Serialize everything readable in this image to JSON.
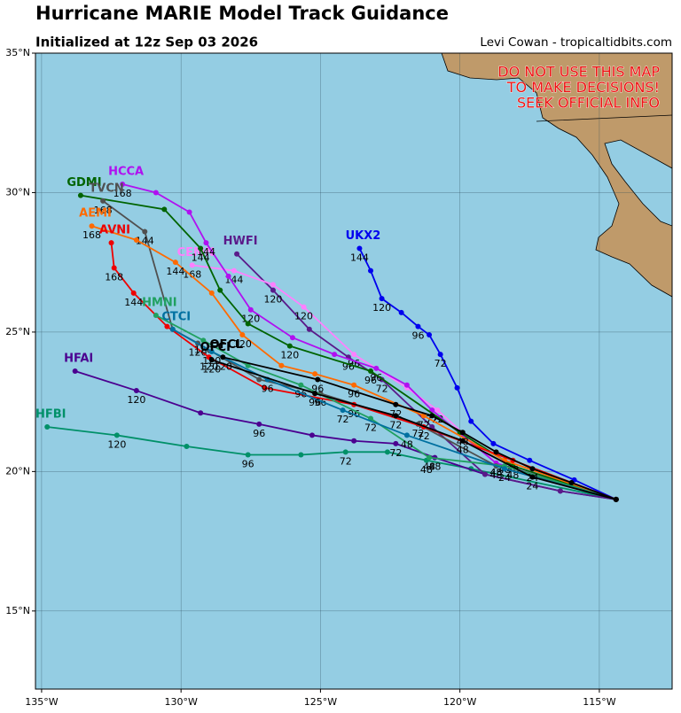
{
  "header": {
    "title": "Hurricane MARIE Model Track Guidance",
    "subtitle": "Initialized at 12z Sep 03 2026",
    "credit": "Levi Cowan - tropicaltidbits.com"
  },
  "warning": [
    "DO NOT USE THIS MAP",
    "TO MAKE DECISIONS!",
    "SEEK OFFICIAL INFO"
  ],
  "map": {
    "lonlim": [
      -135.22,
      -112.39
    ],
    "latlim": [
      12.2,
      35
    ],
    "lonticks": [
      {
        "value": -135,
        "label": "135°W"
      },
      {
        "value": -130,
        "label": "130°W"
      },
      {
        "value": -125,
        "label": "125°W"
      },
      {
        "value": -120,
        "label": "120°W"
      },
      {
        "value": -115,
        "label": "115°W"
      }
    ],
    "latticks": [
      {
        "value": 15,
        "label": "15°N"
      },
      {
        "value": 20,
        "label": "20°N"
      },
      {
        "value": 25,
        "label": "25°N"
      },
      {
        "value": 30,
        "label": "30°N"
      },
      {
        "value": 35,
        "label": "35°N"
      }
    ],
    "tracks": [
      {
        "name": "HFBI",
        "color": "#009068",
        "lon": [
          -114.4,
          -119.6,
          -121.2,
          -122.6,
          -124.1,
          -125.7,
          -127.6,
          -129.8,
          -132.3,
          -134.8
        ],
        "lat": [
          19.0,
          20.1,
          20.4,
          20.7,
          20.7,
          20.6,
          20.6,
          20.9,
          21.3,
          21.6
        ],
        "hours": [
          null,
          null,
          48,
          null,
          72,
          null,
          96,
          null,
          120,
          null
        ]
      },
      {
        "name": "HFAI",
        "color": "#4b0090",
        "lon": [
          -114.4,
          -116.4,
          -119.1,
          -120.9,
          -122.3,
          -123.8,
          -125.3,
          -127.2,
          -129.3,
          -131.6,
          -133.8
        ],
        "lat": [
          19.0,
          19.3,
          19.9,
          20.5,
          21.0,
          21.1,
          21.3,
          21.7,
          22.1,
          22.9,
          23.6
        ],
        "hours": [
          null,
          null,
          null,
          48,
          72,
          null,
          null,
          96,
          null,
          120,
          null
        ]
      },
      {
        "name": "UKX2",
        "color": "#0000ee",
        "lon": [
          -114.4,
          -115.9,
          -117.5,
          -118.8,
          -119.6,
          -120.1,
          -120.7,
          -121.1,
          -121.5,
          -122.1,
          -122.8,
          -123.2,
          -123.6
        ],
        "lat": [
          19.0,
          19.7,
          20.4,
          21.0,
          21.8,
          23.0,
          24.2,
          24.9,
          25.2,
          25.7,
          26.2,
          27.2,
          28.0
        ],
        "hours": [
          null,
          null,
          null,
          null,
          null,
          null,
          72,
          null,
          96,
          null,
          120,
          null,
          144
        ]
      },
      {
        "name": "HWFI",
        "color": "#5a1a8a",
        "lon": [
          -114.4,
          -116.4,
          -119.1,
          -121.0,
          -122.8,
          -124.0,
          -125.4,
          -126.7,
          -128.0
        ],
        "lat": [
          19.0,
          19.3,
          19.9,
          21.6,
          23.3,
          24.1,
          25.1,
          26.5,
          27.8
        ],
        "hours": [
          null,
          null,
          null,
          null,
          72,
          96,
          null,
          120,
          null
        ]
      },
      {
        "name": "CEMN",
        "color": "#ff80ff",
        "lon": [
          -114.4,
          -118.7,
          -120.8,
          -121.9,
          -123.8,
          -125.6,
          -126.7,
          -128.1,
          -129.6
        ],
        "lat": [
          19.0,
          20.3,
          22.2,
          23.0,
          24.2,
          25.9,
          26.7,
          27.2,
          27.4
        ],
        "hours": [
          null,
          48,
          72,
          null,
          96,
          120,
          null,
          144,
          168
        ]
      },
      {
        "name": "HCCA",
        "color": "#b010f0",
        "lon": [
          -114.4,
          -118.7,
          -121.0,
          -121.9,
          -123.0,
          -124.5,
          -126.0,
          -127.5,
          -128.3,
          -129.1,
          -129.7,
          -130.9,
          -132.1
        ],
        "lat": [
          19.0,
          20.3,
          22.2,
          23.1,
          23.7,
          24.2,
          24.8,
          25.8,
          27.0,
          28.2,
          29.3,
          30.0,
          30.3
        ],
        "hours": [
          null,
          48,
          72,
          null,
          96,
          null,
          null,
          120,
          null,
          144,
          null,
          null,
          168
        ]
      },
      {
        "name": "GDMI",
        "color": "#006400",
        "lon": [
          -114.4,
          -118.1,
          -120.0,
          -123.2,
          -126.1,
          -127.6,
          -128.6,
          -129.3,
          -130.6,
          -133.6
        ],
        "lat": [
          19.0,
          20.2,
          21.4,
          23.6,
          24.5,
          25.3,
          26.5,
          28.0,
          29.4,
          29.9
        ],
        "hours": [
          null,
          48,
          null,
          96,
          120,
          null,
          null,
          144,
          null,
          null
        ]
      },
      {
        "name": "TVCN",
        "color": "#505050",
        "lon": [
          -114.4,
          -118.7,
          -121.5,
          -125.0,
          -127.2,
          -129.4,
          -130.3,
          -131.3,
          -132.8
        ],
        "lat": [
          19.0,
          20.2,
          21.7,
          22.8,
          23.3,
          24.6,
          25.1,
          28.6,
          29.7
        ],
        "hours": [
          null,
          48,
          72,
          96,
          null,
          120,
          null,
          144,
          168
        ]
      },
      {
        "name": "AEMI",
        "color": "#ff6a00",
        "lon": [
          -114.4,
          -118.4,
          -121.3,
          -123.8,
          -125.2,
          -126.4,
          -127.8,
          -128.9,
          -130.2,
          -131.6,
          -133.2
        ],
        "lat": [
          19.0,
          20.4,
          22.0,
          23.1,
          23.5,
          23.8,
          24.9,
          26.4,
          27.5,
          28.3,
          28.8
        ],
        "hours": [
          null,
          48,
          72,
          96,
          null,
          null,
          120,
          null,
          144,
          null,
          168
        ]
      },
      {
        "name": "AVNI",
        "color": "#ee0000",
        "lon": [
          -114.4,
          -118.1,
          -121.3,
          -123.8,
          -127.0,
          -129.0,
          -130.5,
          -131.7,
          -132.4,
          -132.5
        ],
        "lat": [
          19.0,
          20.4,
          21.6,
          22.4,
          23.0,
          24.1,
          25.2,
          26.4,
          27.3,
          28.2
        ],
        "hours": [
          null,
          48,
          72,
          96,
          null,
          120,
          null,
          144,
          168,
          null
        ]
      },
      {
        "name": "HMNI",
        "color": "#20a060",
        "lon": [
          -114.4,
          -118.4,
          -121.1,
          -123.2,
          -125.7,
          -127.6,
          -129.2,
          -130.9
        ],
        "lat": [
          19.0,
          20.2,
          20.5,
          21.9,
          23.1,
          23.8,
          24.7,
          25.6
        ],
        "hours": [
          null,
          null,
          48,
          72,
          96,
          null,
          120,
          null
        ]
      },
      {
        "name": "CTCI",
        "color": "#0070a0",
        "lon": [
          -114.4,
          -118.4,
          -121.9,
          -124.2,
          -126.9,
          -128.9,
          -130.3
        ],
        "lat": [
          19.0,
          20.1,
          21.3,
          22.2,
          23.3,
          24.3,
          25.1
        ],
        "hours": [
          null,
          24,
          48,
          72,
          96,
          120,
          null
        ]
      },
      {
        "name": "OFCI",
        "color": "#000000",
        "lon": [
          -114.4,
          -117.4,
          -119.9,
          -122.3,
          -125.2,
          -128.9
        ],
        "lat": [
          19.0,
          19.8,
          21.1,
          22.0,
          22.8,
          24.0
        ],
        "hours": [
          null,
          24,
          48,
          72,
          96,
          120
        ]
      },
      {
        "name": "OFCL",
        "color": "#000000",
        "lon": [
          -114.4,
          -116.0,
          -117.4,
          -118.7,
          -119.9,
          -121.0,
          -122.3,
          -125.1,
          -128.5
        ],
        "lat": [
          19.0,
          19.6,
          20.1,
          20.7,
          21.4,
          22.0,
          22.4,
          23.3,
          24.1
        ],
        "hours": [
          null,
          null,
          24,
          null,
          48,
          null,
          72,
          96,
          120
        ]
      }
    ]
  }
}
